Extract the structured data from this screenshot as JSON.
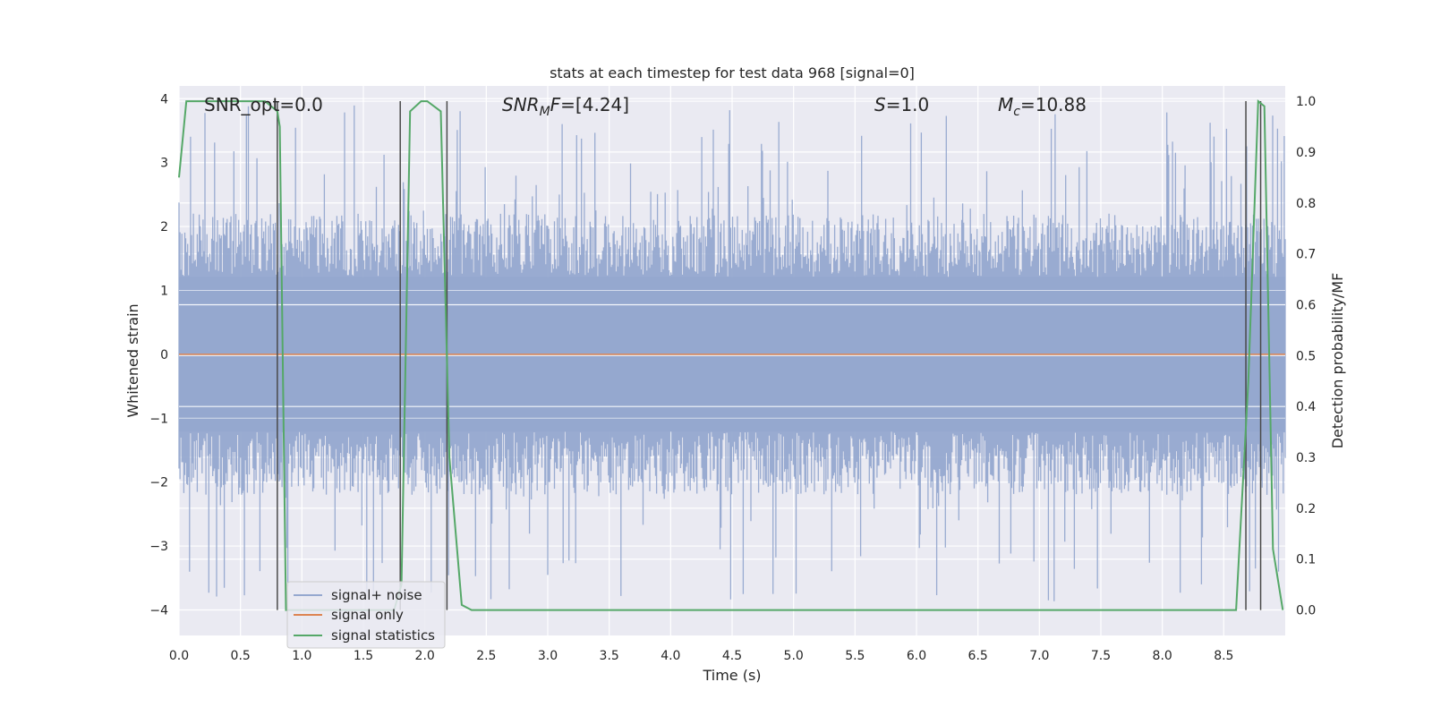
{
  "chart_data": {
    "type": "line",
    "title": "stats at each timestep for test data 968 [signal=0]",
    "xlabel": "Time (s)",
    "ylabel_left": "Whitened strain",
    "ylabel_right": "Detection probability/MF",
    "xlim": [
      0.0,
      9.0
    ],
    "ylim_left": [
      -4.4,
      4.2
    ],
    "ylim_right": [
      -0.05,
      1.03
    ],
    "x_ticks": [
      "0.0",
      "0.5",
      "1.0",
      "1.5",
      "2.0",
      "2.5",
      "3.0",
      "3.5",
      "4.0",
      "4.5",
      "5.0",
      "5.5",
      "6.0",
      "6.5",
      "7.0",
      "7.5",
      "8.0",
      "8.5"
    ],
    "x_tick_values": [
      0.0,
      0.5,
      1.0,
      1.5,
      2.0,
      2.5,
      3.0,
      3.5,
      4.0,
      4.5,
      5.0,
      5.5,
      6.0,
      6.5,
      7.0,
      7.5,
      8.0,
      8.5
    ],
    "y_left_ticks": [
      "4",
      "3",
      "2",
      "1",
      "0",
      "−1",
      "−2",
      "−3",
      "−4"
    ],
    "y_left_tick_values": [
      4,
      3,
      2,
      1,
      0,
      -1,
      -2,
      -3,
      -4
    ],
    "y_right_ticks": [
      "1.0",
      "0.9",
      "0.8",
      "0.7",
      "0.6",
      "0.5",
      "0.4",
      "0.3",
      "0.2",
      "0.1",
      "0.0"
    ],
    "y_right_tick_values": [
      1.0,
      0.9,
      0.8,
      0.7,
      0.6,
      0.5,
      0.4,
      0.3,
      0.2,
      0.1,
      0.0
    ],
    "grid": true,
    "legend_position": "lower-left",
    "annotations": {
      "snr_opt": "SNR_opt=0.0",
      "snr_mf_prefix": "SNR",
      "snr_mf_sub": "M",
      "snr_mf_mid": "F",
      "snr_mf_value": "=[4.24]",
      "s_label": "S",
      "s_value": "=1.0",
      "mc_label": "M",
      "mc_sub": "c",
      "mc_value": "=10.88"
    },
    "series": [
      {
        "name": "signal+ noise",
        "color": "#95a8cf",
        "axis": "left",
        "envelope": {
          "x": [
            0.0,
            9.0
          ],
          "typical_upper": 2.2,
          "typical_lower": -2.2,
          "peak_upper": 3.9,
          "peak_lower": -3.9
        }
      },
      {
        "name": "signal only",
        "color": "#dd8452",
        "axis": "left",
        "x": [
          0.0,
          9.0
        ],
        "y": [
          0.0,
          0.0
        ]
      },
      {
        "name": "signal statistics",
        "color": "#55a868",
        "axis": "right",
        "x": [
          0.0,
          0.06,
          0.12,
          0.6,
          0.7,
          0.8,
          0.82,
          0.87,
          1.0,
          1.75,
          1.81,
          1.88,
          1.97,
          2.02,
          2.13,
          2.2,
          2.3,
          2.38,
          8.6,
          8.7,
          8.78,
          8.83,
          8.9,
          8.98
        ],
        "y": [
          0.85,
          1.0,
          1.0,
          1.0,
          1.0,
          0.98,
          0.95,
          0.0,
          0.0,
          0.0,
          0.05,
          0.98,
          1.0,
          1.0,
          0.98,
          0.3,
          0.01,
          0.0,
          0.0,
          0.45,
          1.0,
          0.99,
          0.12,
          0.0
        ]
      }
    ],
    "vertical_markers": [
      0.8,
      1.8,
      2.18,
      8.68,
      8.8
    ]
  }
}
